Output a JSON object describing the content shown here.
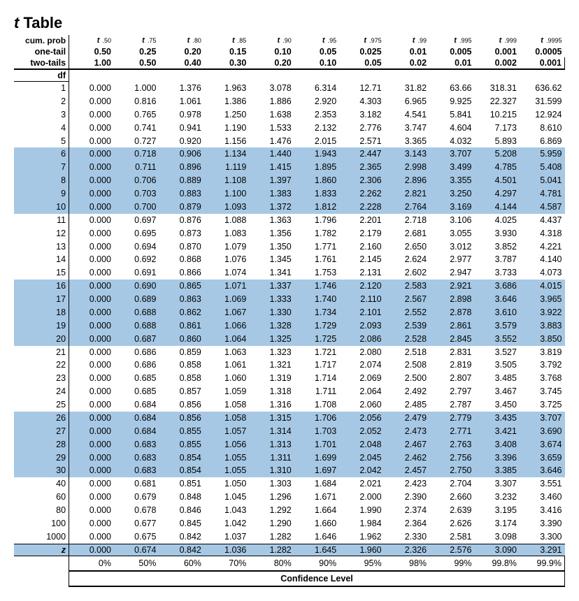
{
  "title_prefix_italic": "t",
  "title_rest": " Table",
  "headers": {
    "cumprob_label": "cum. prob",
    "onetail_label": "one-tail",
    "twotail_label": "two-tails",
    "df_label": "df",
    "t_letter": "t",
    "subs": [
      ".50",
      ".75",
      ".80",
      ".85",
      ".90",
      ".95",
      ".975",
      ".99",
      ".995",
      ".999",
      ".9995"
    ],
    "one_tail": [
      "0.50",
      "0.25",
      "0.20",
      "0.15",
      "0.10",
      "0.05",
      "0.025",
      "0.01",
      "0.005",
      "0.001",
      "0.0005"
    ],
    "two_tail": [
      "1.00",
      "0.50",
      "0.40",
      "0.30",
      "0.20",
      "0.10",
      "0.05",
      "0.02",
      "0.01",
      "0.002",
      "0.001"
    ]
  },
  "rows": [
    {
      "df": "1",
      "band": false,
      "v": [
        "0.000",
        "1.000",
        "1.376",
        "1.963",
        "3.078",
        "6.314",
        "12.71",
        "31.82",
        "63.66",
        "318.31",
        "636.62"
      ]
    },
    {
      "df": "2",
      "band": false,
      "v": [
        "0.000",
        "0.816",
        "1.061",
        "1.386",
        "1.886",
        "2.920",
        "4.303",
        "6.965",
        "9.925",
        "22.327",
        "31.599"
      ]
    },
    {
      "df": "3",
      "band": false,
      "v": [
        "0.000",
        "0.765",
        "0.978",
        "1.250",
        "1.638",
        "2.353",
        "3.182",
        "4.541",
        "5.841",
        "10.215",
        "12.924"
      ]
    },
    {
      "df": "4",
      "band": false,
      "v": [
        "0.000",
        "0.741",
        "0.941",
        "1.190",
        "1.533",
        "2.132",
        "2.776",
        "3.747",
        "4.604",
        "7.173",
        "8.610"
      ]
    },
    {
      "df": "5",
      "band": false,
      "v": [
        "0.000",
        "0.727",
        "0.920",
        "1.156",
        "1.476",
        "2.015",
        "2.571",
        "3.365",
        "4.032",
        "5.893",
        "6.869"
      ]
    },
    {
      "df": "6",
      "band": true,
      "v": [
        "0.000",
        "0.718",
        "0.906",
        "1.134",
        "1.440",
        "1.943",
        "2.447",
        "3.143",
        "3.707",
        "5.208",
        "5.959"
      ]
    },
    {
      "df": "7",
      "band": true,
      "v": [
        "0.000",
        "0.711",
        "0.896",
        "1.119",
        "1.415",
        "1.895",
        "2.365",
        "2.998",
        "3.499",
        "4.785",
        "5.408"
      ]
    },
    {
      "df": "8",
      "band": true,
      "v": [
        "0.000",
        "0.706",
        "0.889",
        "1.108",
        "1.397",
        "1.860",
        "2.306",
        "2.896",
        "3.355",
        "4.501",
        "5.041"
      ]
    },
    {
      "df": "9",
      "band": true,
      "v": [
        "0.000",
        "0.703",
        "0.883",
        "1.100",
        "1.383",
        "1.833",
        "2.262",
        "2.821",
        "3.250",
        "4.297",
        "4.781"
      ]
    },
    {
      "df": "10",
      "band": true,
      "v": [
        "0.000",
        "0.700",
        "0.879",
        "1.093",
        "1.372",
        "1.812",
        "2.228",
        "2.764",
        "3.169",
        "4.144",
        "4.587"
      ]
    },
    {
      "df": "11",
      "band": false,
      "v": [
        "0.000",
        "0.697",
        "0.876",
        "1.088",
        "1.363",
        "1.796",
        "2.201",
        "2.718",
        "3.106",
        "4.025",
        "4.437"
      ]
    },
    {
      "df": "12",
      "band": false,
      "v": [
        "0.000",
        "0.695",
        "0.873",
        "1.083",
        "1.356",
        "1.782",
        "2.179",
        "2.681",
        "3.055",
        "3.930",
        "4.318"
      ]
    },
    {
      "df": "13",
      "band": false,
      "v": [
        "0.000",
        "0.694",
        "0.870",
        "1.079",
        "1.350",
        "1.771",
        "2.160",
        "2.650",
        "3.012",
        "3.852",
        "4.221"
      ]
    },
    {
      "df": "14",
      "band": false,
      "v": [
        "0.000",
        "0.692",
        "0.868",
        "1.076",
        "1.345",
        "1.761",
        "2.145",
        "2.624",
        "2.977",
        "3.787",
        "4.140"
      ]
    },
    {
      "df": "15",
      "band": false,
      "v": [
        "0.000",
        "0.691",
        "0.866",
        "1.074",
        "1.341",
        "1.753",
        "2.131",
        "2.602",
        "2.947",
        "3.733",
        "4.073"
      ]
    },
    {
      "df": "16",
      "band": true,
      "v": [
        "0.000",
        "0.690",
        "0.865",
        "1.071",
        "1.337",
        "1.746",
        "2.120",
        "2.583",
        "2.921",
        "3.686",
        "4.015"
      ]
    },
    {
      "df": "17",
      "band": true,
      "v": [
        "0.000",
        "0.689",
        "0.863",
        "1.069",
        "1.333",
        "1.740",
        "2.110",
        "2.567",
        "2.898",
        "3.646",
        "3.965"
      ]
    },
    {
      "df": "18",
      "band": true,
      "v": [
        "0.000",
        "0.688",
        "0.862",
        "1.067",
        "1.330",
        "1.734",
        "2.101",
        "2.552",
        "2.878",
        "3.610",
        "3.922"
      ]
    },
    {
      "df": "19",
      "band": true,
      "v": [
        "0.000",
        "0.688",
        "0.861",
        "1.066",
        "1.328",
        "1.729",
        "2.093",
        "2.539",
        "2.861",
        "3.579",
        "3.883"
      ]
    },
    {
      "df": "20",
      "band": true,
      "v": [
        "0.000",
        "0.687",
        "0.860",
        "1.064",
        "1.325",
        "1.725",
        "2.086",
        "2.528",
        "2.845",
        "3.552",
        "3.850"
      ]
    },
    {
      "df": "21",
      "band": false,
      "v": [
        "0.000",
        "0.686",
        "0.859",
        "1.063",
        "1.323",
        "1.721",
        "2.080",
        "2.518",
        "2.831",
        "3.527",
        "3.819"
      ]
    },
    {
      "df": "22",
      "band": false,
      "v": [
        "0.000",
        "0.686",
        "0.858",
        "1.061",
        "1.321",
        "1.717",
        "2.074",
        "2.508",
        "2.819",
        "3.505",
        "3.792"
      ]
    },
    {
      "df": "23",
      "band": false,
      "v": [
        "0.000",
        "0.685",
        "0.858",
        "1.060",
        "1.319",
        "1.714",
        "2.069",
        "2.500",
        "2.807",
        "3.485",
        "3.768"
      ]
    },
    {
      "df": "24",
      "band": false,
      "v": [
        "0.000",
        "0.685",
        "0.857",
        "1.059",
        "1.318",
        "1.711",
        "2.064",
        "2.492",
        "2.797",
        "3.467",
        "3.745"
      ]
    },
    {
      "df": "25",
      "band": false,
      "v": [
        "0.000",
        "0.684",
        "0.856",
        "1.058",
        "1.316",
        "1.708",
        "2.060",
        "2.485",
        "2.787",
        "3.450",
        "3.725"
      ]
    },
    {
      "df": "26",
      "band": true,
      "v": [
        "0.000",
        "0.684",
        "0.856",
        "1.058",
        "1.315",
        "1.706",
        "2.056",
        "2.479",
        "2.779",
        "3.435",
        "3.707"
      ]
    },
    {
      "df": "27",
      "band": true,
      "v": [
        "0.000",
        "0.684",
        "0.855",
        "1.057",
        "1.314",
        "1.703",
        "2.052",
        "2.473",
        "2.771",
        "3.421",
        "3.690"
      ]
    },
    {
      "df": "28",
      "band": true,
      "v": [
        "0.000",
        "0.683",
        "0.855",
        "1.056",
        "1.313",
        "1.701",
        "2.048",
        "2.467",
        "2.763",
        "3.408",
        "3.674"
      ]
    },
    {
      "df": "29",
      "band": true,
      "v": [
        "0.000",
        "0.683",
        "0.854",
        "1.055",
        "1.311",
        "1.699",
        "2.045",
        "2.462",
        "2.756",
        "3.396",
        "3.659"
      ]
    },
    {
      "df": "30",
      "band": true,
      "v": [
        "0.000",
        "0.683",
        "0.854",
        "1.055",
        "1.310",
        "1.697",
        "2.042",
        "2.457",
        "2.750",
        "3.385",
        "3.646"
      ]
    },
    {
      "df": "40",
      "band": false,
      "v": [
        "0.000",
        "0.681",
        "0.851",
        "1.050",
        "1.303",
        "1.684",
        "2.021",
        "2.423",
        "2.704",
        "3.307",
        "3.551"
      ]
    },
    {
      "df": "60",
      "band": false,
      "v": [
        "0.000",
        "0.679",
        "0.848",
        "1.045",
        "1.296",
        "1.671",
        "2.000",
        "2.390",
        "2.660",
        "3.232",
        "3.460"
      ]
    },
    {
      "df": "80",
      "band": false,
      "v": [
        "0.000",
        "0.678",
        "0.846",
        "1.043",
        "1.292",
        "1.664",
        "1.990",
        "2.374",
        "2.639",
        "3.195",
        "3.416"
      ]
    },
    {
      "df": "100",
      "band": false,
      "v": [
        "0.000",
        "0.677",
        "0.845",
        "1.042",
        "1.290",
        "1.660",
        "1.984",
        "2.364",
        "2.626",
        "3.174",
        "3.390"
      ]
    },
    {
      "df": "1000",
      "band": false,
      "v": [
        "0.000",
        "0.675",
        "0.842",
        "1.037",
        "1.282",
        "1.646",
        "1.962",
        "2.330",
        "2.581",
        "3.098",
        "3.300"
      ]
    }
  ],
  "z_row": {
    "label": "z",
    "v": [
      "0.000",
      "0.674",
      "0.842",
      "1.036",
      "1.282",
      "1.645",
      "1.960",
      "2.326",
      "2.576",
      "3.090",
      "3.291"
    ]
  },
  "conf_pct": [
    "0%",
    "50%",
    "60%",
    "70%",
    "80%",
    "90%",
    "95%",
    "98%",
    "99%",
    "99.8%",
    "99.9%"
  ],
  "conf_label": "Confidence Level",
  "style": {
    "band_color": "#a6c8e4",
    "background_color": "#ffffff",
    "text_color": "#000000",
    "base_fontsize": 12.5,
    "header_bold": true
  }
}
